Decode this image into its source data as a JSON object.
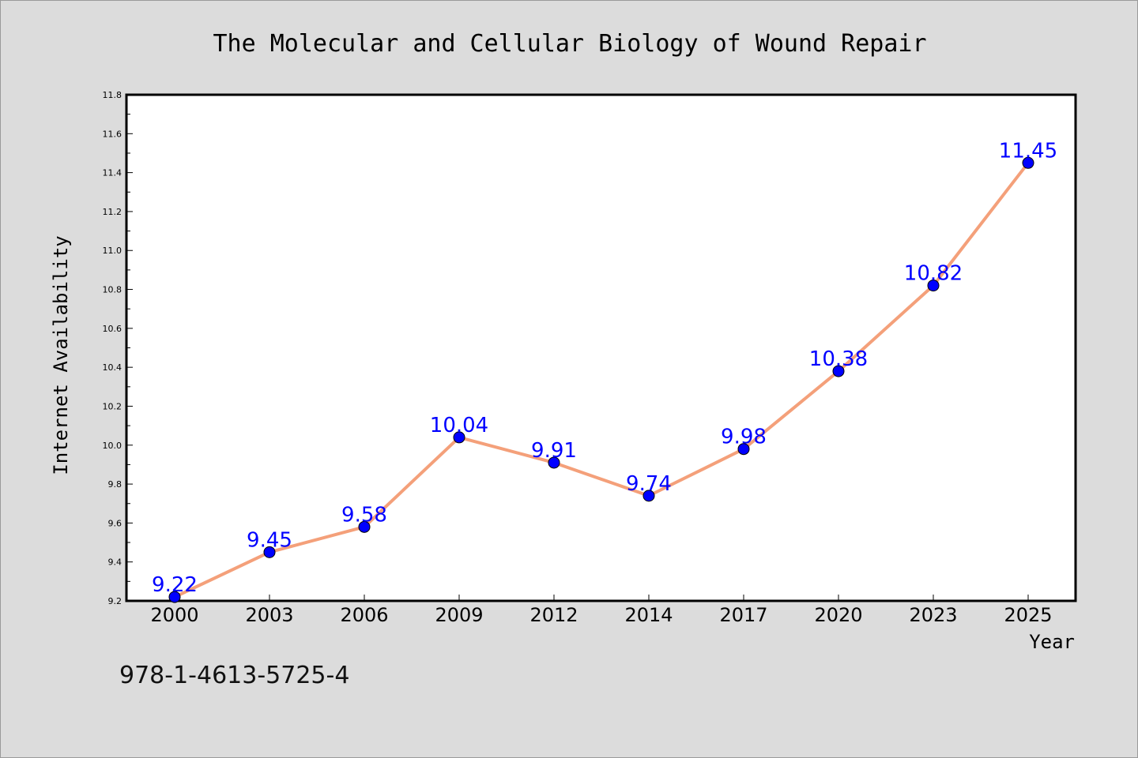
{
  "chart_data": {
    "type": "line",
    "title": "The Molecular and Cellular Biology of Wound Repair",
    "xlabel": "Year",
    "ylabel": "Internet Availability",
    "categories": [
      "2000",
      "2003",
      "2006",
      "2009",
      "2012",
      "2014",
      "2017",
      "2020",
      "2023",
      "2025"
    ],
    "series": [
      {
        "values": [
          9.22,
          9.45,
          9.58,
          10.04,
          9.91,
          9.74,
          9.98,
          10.38,
          10.82,
          11.45
        ],
        "labels": [
          "9.22",
          "9.45",
          "9.58",
          "10.04",
          "9.91",
          "9.74",
          "9.98",
          "10.38",
          "10.82",
          "11.45"
        ],
        "line_color": "#f4a07a",
        "marker_color": "#0000ff"
      }
    ],
    "ylim": [
      9.2,
      11.8
    ],
    "yticks": [
      "9.2",
      "9.4",
      "9.6",
      "9.8",
      "10.0",
      "10.2",
      "10.4",
      "10.6",
      "10.8",
      "11.0",
      "11.2",
      "11.4",
      "11.6",
      "11.8"
    ],
    "grid": false,
    "legend": "none"
  },
  "footer": {
    "isbn": "978-1-4613-5725-4"
  },
  "colors": {
    "background": "#dcdcdc",
    "plot_area": "#ffffff",
    "line": "#f4a07a",
    "marker": "#0000ff",
    "data_label": "#0000ff"
  }
}
